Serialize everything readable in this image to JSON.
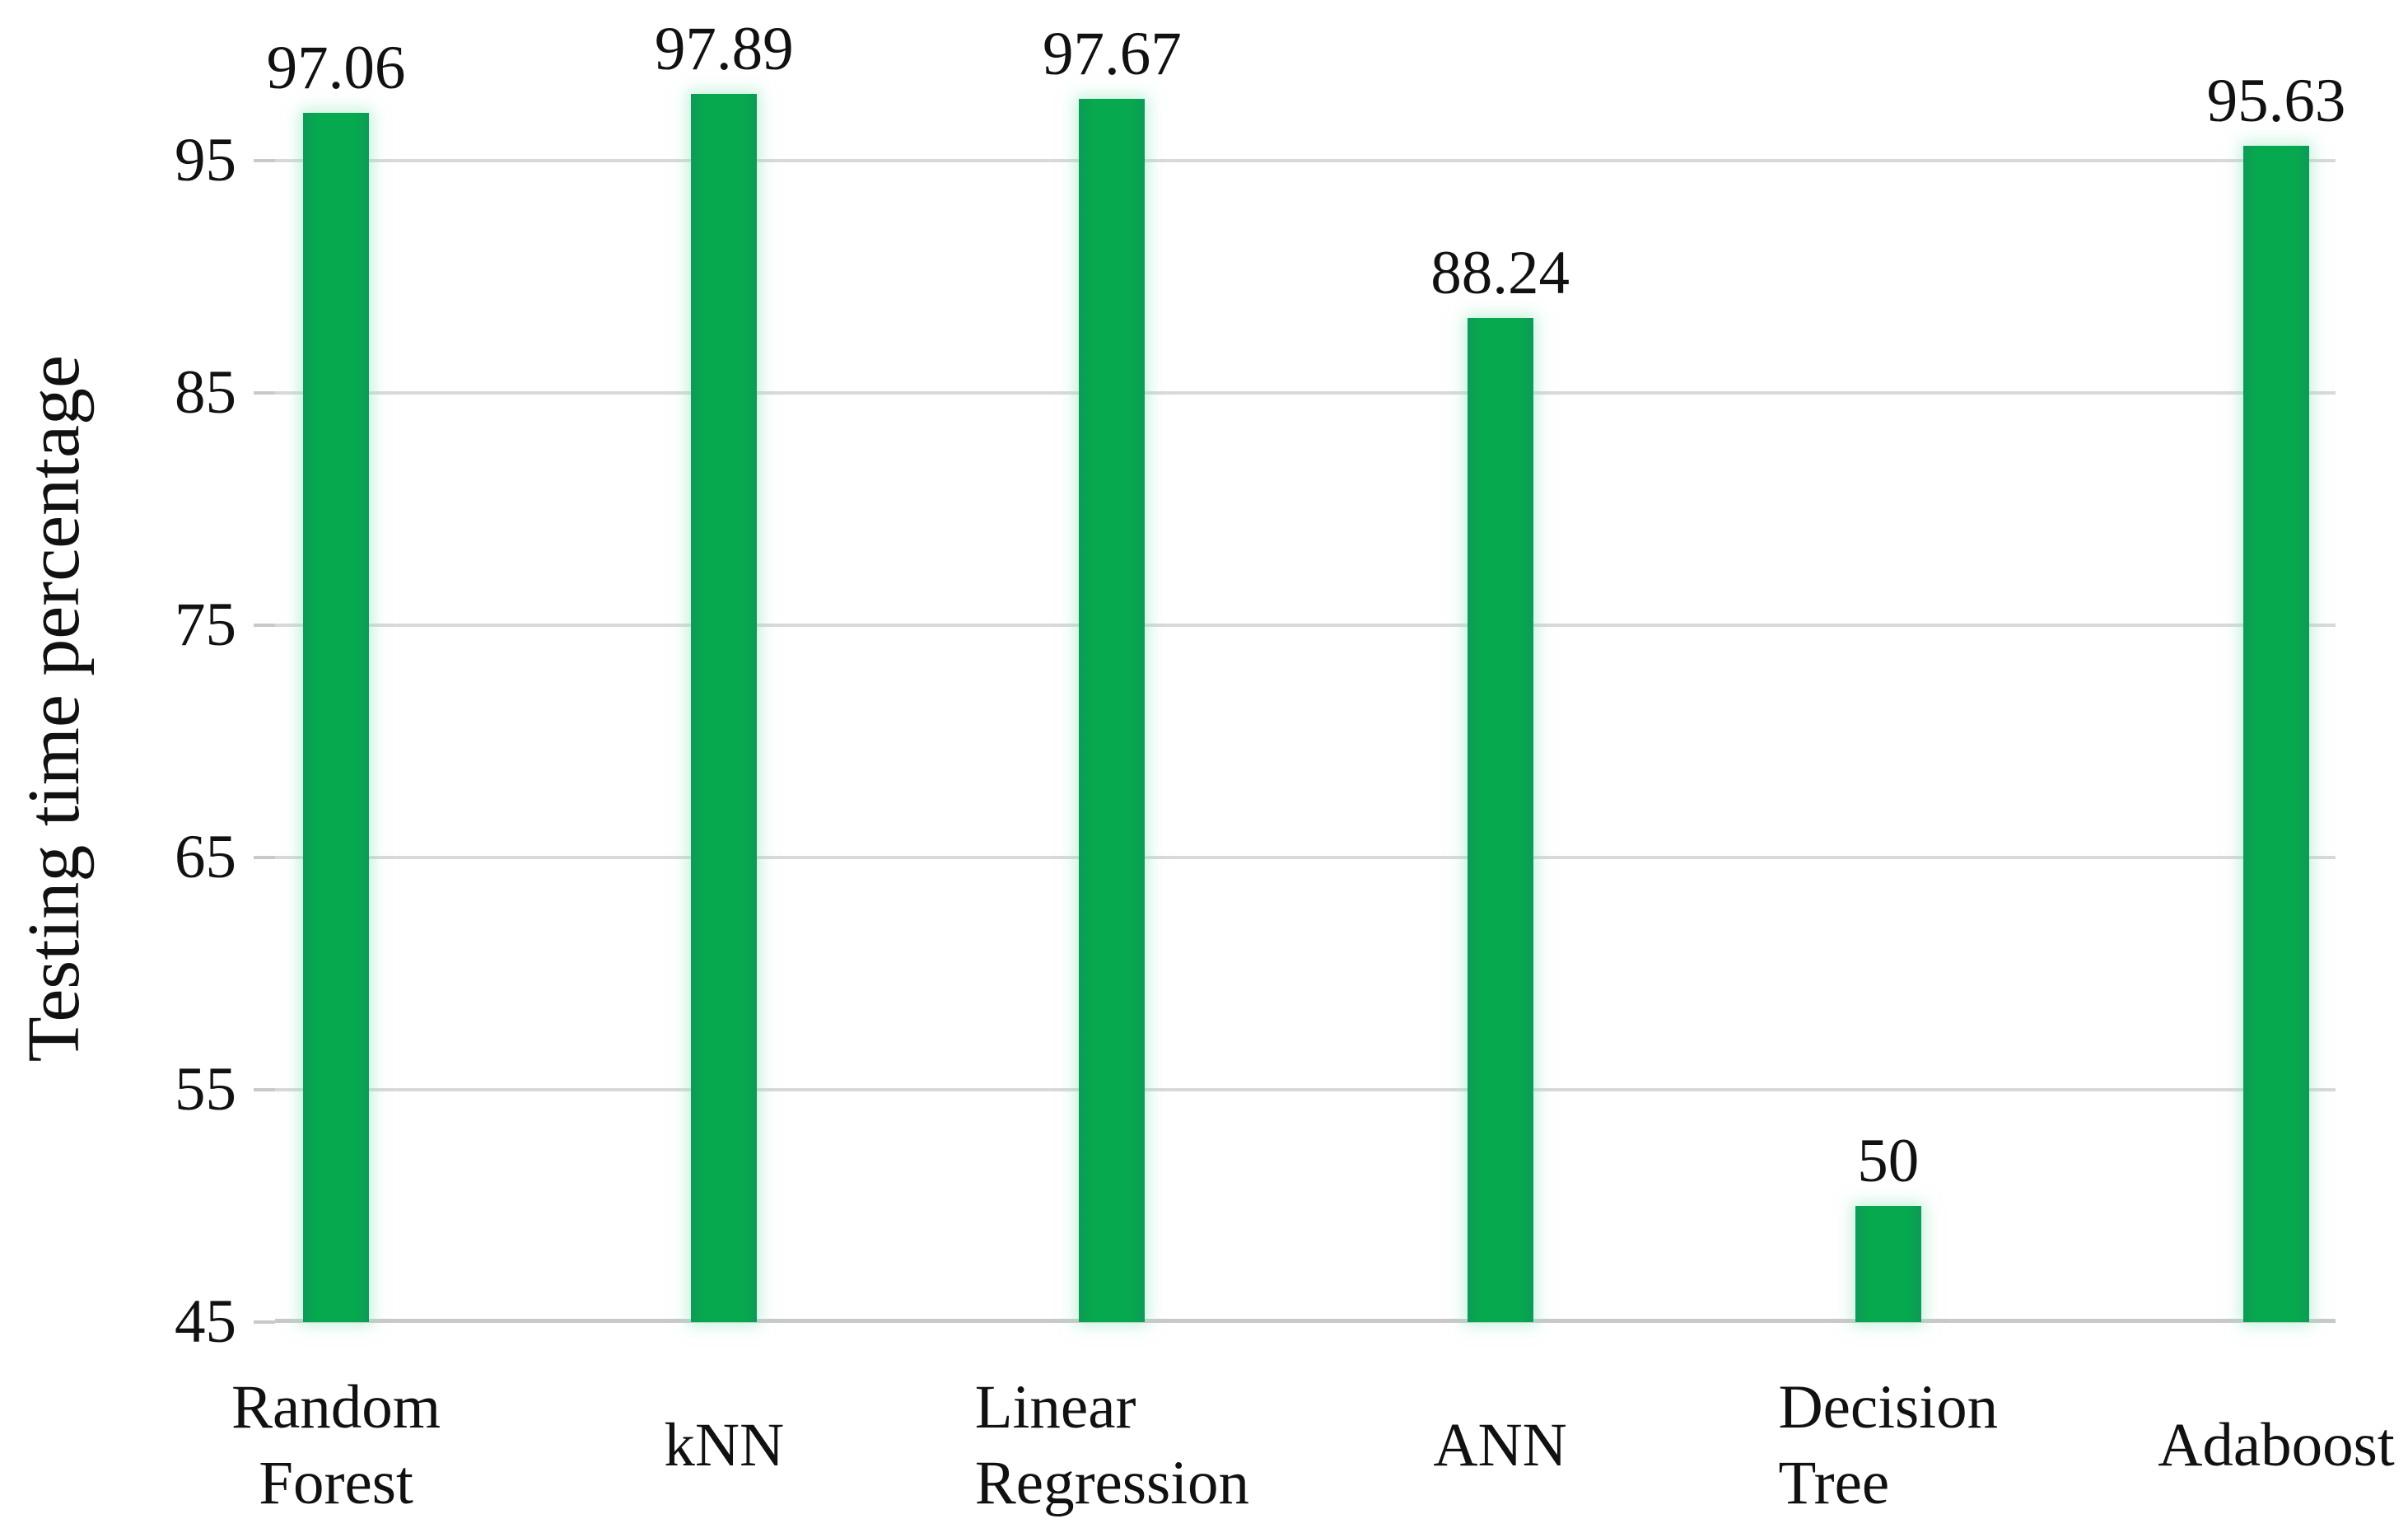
{
  "chart_data": {
    "type": "bar",
    "title": "",
    "ylabel": "Testing time percentage",
    "xlabel": "",
    "categories": [
      "Random\nForest",
      "kNN",
      "Linear\nRegression",
      "ANN",
      "Decision\nTree",
      "Adaboost"
    ],
    "values": [
      97.06,
      97.89,
      97.67,
      88.24,
      50,
      95.63
    ],
    "value_labels": [
      "97.06",
      "97.89",
      "97.67",
      "88.24",
      "50",
      "95.63"
    ],
    "yticks": [
      45,
      55,
      65,
      75,
      85,
      95
    ],
    "ylim": [
      45,
      95
    ],
    "grid": true,
    "legend": false,
    "colors": {
      "bar_fill": "#06A94D",
      "bar_edge": "#0B9C58",
      "bar_glow": "#8FE5BD",
      "gridline": "#D9D9D9",
      "axis_line": "#C9C9C9",
      "text": "#111111"
    }
  }
}
